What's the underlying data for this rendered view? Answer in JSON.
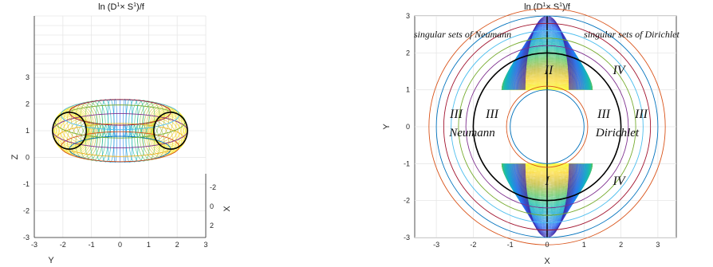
{
  "chart_data": [
    {
      "type": "surface-3d",
      "title": {
        "prefix": "ln (D",
        "sup1": "1",
        "mid": "× S",
        "sup2": "1",
        "suffix": ")/f"
      },
      "xlabel": "X",
      "ylabel": "Y",
      "zlabel": "Z",
      "z_ticks": [
        "3",
        "2",
        "1",
        "0",
        "-1",
        "-2",
        "-3"
      ],
      "y_ticks": [
        "-3",
        "-2",
        "-1",
        "0",
        "1",
        "2",
        "3"
      ],
      "x_ticks": [
        "-2",
        "0",
        "2"
      ],
      "zlim": [
        -3,
        3
      ],
      "ylim": [
        -3,
        3
      ],
      "xlim": [
        -3,
        3
      ],
      "torus": {
        "major_radius": 1.5,
        "minor_radius": 0.5,
        "center_z": 1
      }
    },
    {
      "type": "surface-2d-projection",
      "title": {
        "prefix": "ln (D",
        "sup1": "1",
        "mid": "× S",
        "sup2": "1",
        "suffix": ")/f"
      },
      "xlabel": "X",
      "ylabel": "Y",
      "x_ticks": [
        "-3",
        "-2",
        "-1",
        "0",
        "1",
        "2",
        "3"
      ],
      "y_ticks": [
        "3",
        "2",
        "1",
        "0",
        "-1",
        "-2",
        "-3"
      ],
      "xlim": [
        -3,
        3
      ],
      "ylim": [
        -3,
        3
      ],
      "circle_radii": [
        1,
        1.1,
        2,
        2.2,
        2.4,
        2.6,
        2.8,
        3,
        3.2
      ],
      "black_circle_radius": 2,
      "annotations": {
        "neumann_sets": "singular sets of Neumann",
        "dirichlet_sets": "singular sets of Dirichlet",
        "region_I": "I",
        "region_II": "II",
        "region_III_1": "III",
        "region_III_2": "III",
        "region_III_3": "III",
        "region_III_4": "III",
        "region_IV_top": "IV",
        "region_IV_bottom": "IV",
        "neumann": "Neumann",
        "dirichlet": "Dirichlet"
      }
    }
  ],
  "colors": {
    "palette": [
      "#3e26a8",
      "#2c6ef5",
      "#14a2d6",
      "#1dbfa6",
      "#61c45b",
      "#c2bb3a",
      "#f9d32a",
      "#f9fb0e"
    ],
    "ring_colors": [
      "#0072bd",
      "#d95319",
      "#edb120",
      "#7e2f8e",
      "#77ac30",
      "#4dbeee",
      "#a2142f"
    ],
    "black": "#000000"
  }
}
